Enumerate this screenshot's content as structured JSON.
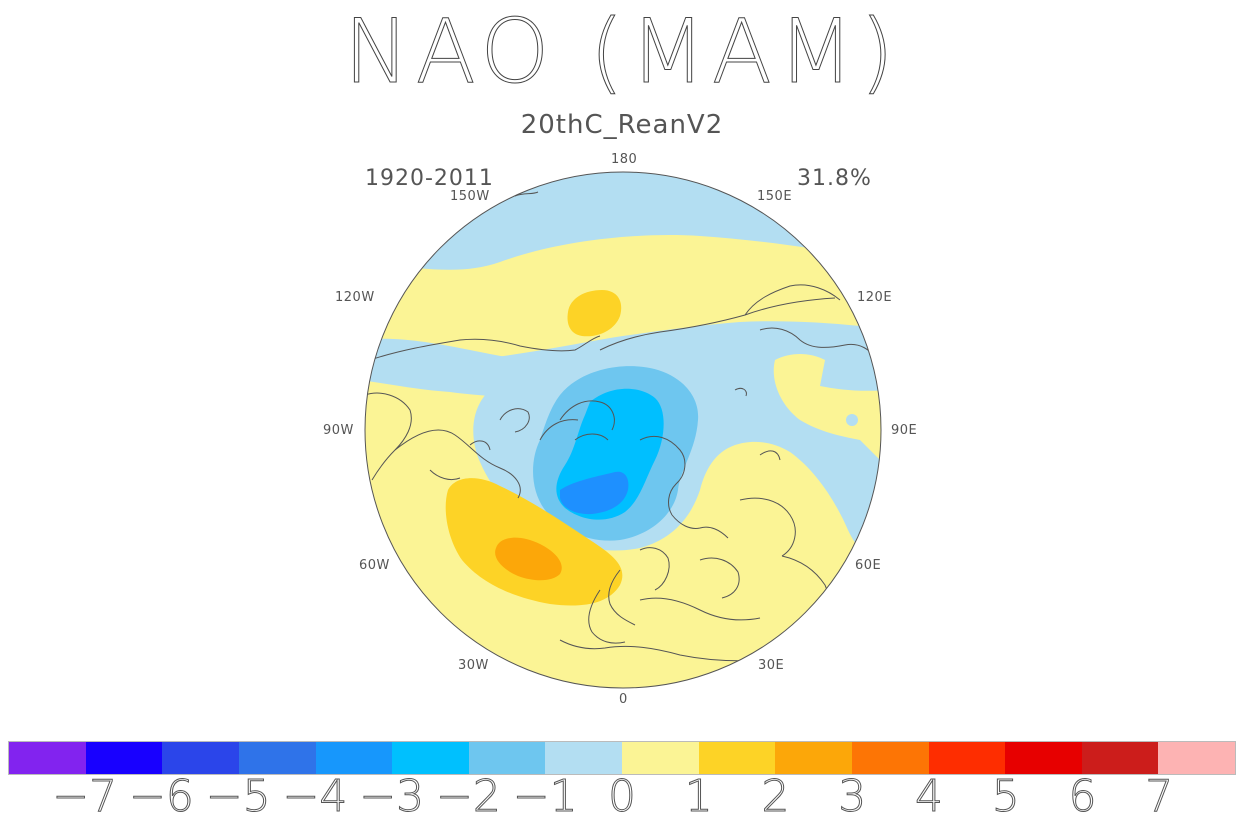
{
  "title": "NAO (MAM)",
  "subtitle": "20thC_ReanV2",
  "period": "1920-2011",
  "variance_explained": "31.8%",
  "longitude_labels": {
    "lon_180": "180",
    "lon_150w": "150W",
    "lon_150e": "150E",
    "lon_120w": "120W",
    "lon_120e": "120E",
    "lon_90w": "90W",
    "lon_90e": "90E",
    "lon_60w": "60W",
    "lon_60e": "60E",
    "lon_30w": "30W",
    "lon_30e": "30E",
    "lon_0": "0"
  },
  "colors": {
    "ocean_neg1": "#b3def2",
    "land_pos1": "#fbf495",
    "pos2": "#fdd326",
    "pos3": "#fca709",
    "neg2": "#6ec6ef",
    "neg3": "#00bfff",
    "neg4": "#1e90ff",
    "coast": "#555555"
  },
  "colorbar": {
    "colors": [
      "#8223ef",
      "#1800ff",
      "#2b45ea",
      "#2f73e9",
      "#1797fc",
      "#00c0fe",
      "#6ec6ef",
      "#b3def2",
      "#fbf495",
      "#fdd326",
      "#fca709",
      "#fd7505",
      "#fe2d00",
      "#e70000",
      "#cc1d1b",
      "#fdb3b3"
    ],
    "ticks": [
      "-7",
      "-6",
      "-5",
      "-4",
      "-3",
      "-2",
      "-1",
      "0",
      "1",
      "2",
      "3",
      "4",
      "5",
      "6",
      "7"
    ]
  }
}
